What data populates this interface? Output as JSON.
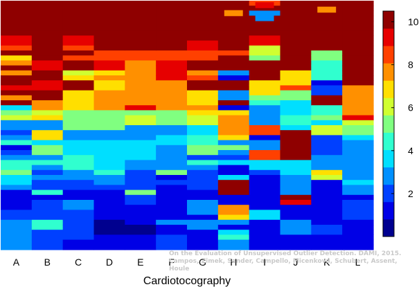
{
  "chart_data": {
    "type": "heatmap",
    "title": "",
    "xlabel": "Cardiotocography",
    "ylabel": "",
    "categories": [
      "A",
      "B",
      "C",
      "D",
      "E",
      "F",
      "G",
      "H",
      "I",
      "J",
      "K",
      "L"
    ],
    "colorbar": {
      "range": [
        0,
        10.5
      ],
      "ticks": [
        "2",
        "4",
        "6",
        "8",
        "10"
      ],
      "colors": [
        "#00008f",
        "#0000e6",
        "#0040ff",
        "#0090ff",
        "#00dfff",
        "#30ffcf",
        "#80ff80",
        "#d0ff30",
        "#ffdf00",
        "#ff9000",
        "#ff4000",
        "#e60000",
        "#8f0000"
      ]
    },
    "rows_top_to_bottom": 50,
    "columns": [
      [
        10.3,
        10.3,
        10.3,
        10.3,
        10.3,
        10.3,
        10.3,
        9.3,
        9.3,
        8.5,
        10.3,
        6.5,
        8.0,
        10.3,
        7.5,
        10.3,
        10.3,
        9.5,
        10.3,
        7.8,
        10.3,
        4.0,
        5.0,
        6.0,
        2.5,
        3.2,
        2.2,
        3.0,
        4.5,
        1.5,
        2.0,
        2.8,
        4.8,
        4.5,
        5.5,
        3.5,
        4.0,
        2.5,
        1.5,
        1.0,
        1.5,
        1.5,
        2.0,
        2.0,
        2.5,
        3.0,
        3.0,
        2.8,
        2.8,
        2.8
      ],
      [
        10.3,
        10.3,
        10.3,
        10.3,
        10.3,
        10.3,
        10.3,
        10.3,
        10.3,
        10.3,
        10.3,
        10.3,
        9.5,
        9.5,
        10.3,
        10.3,
        9.5,
        9.5,
        10.3,
        10.3,
        7.8,
        7.8,
        6.0,
        6.5,
        2.5,
        3.2,
        7.0,
        6.5,
        4.0,
        5.0,
        5.0,
        2.5,
        4.5,
        2.5,
        2.0,
        2.5,
        2.0,
        2.0,
        4.5,
        1.5,
        2.0,
        2.0,
        2.0,
        2.0,
        4.5,
        4.5,
        2.0,
        2.0,
        2.0,
        2.0
      ],
      [
        10.3,
        10.3,
        10.3,
        10.3,
        10.3,
        10.3,
        10.3,
        9.3,
        9.3,
        8.5,
        10.3,
        8.5,
        10.3,
        10.3,
        6.0,
        6.5,
        10.3,
        10.3,
        6.5,
        6.5,
        6.5,
        7.0,
        5.0,
        5.0,
        5.0,
        5.0,
        3.0,
        3.0,
        4.0,
        4.0,
        4.0,
        4.5,
        4.5,
        4.5,
        2.5,
        2.5,
        2.0,
        2.0,
        1.5,
        1.5,
        2.5,
        2.5,
        2.0,
        2.0,
        2.0,
        2.0,
        2.0,
        2.0,
        1.5,
        1.5
      ],
      [
        10.3,
        10.3,
        10.3,
        10.3,
        10.3,
        10.3,
        10.3,
        10.3,
        10.3,
        10.3,
        8.5,
        8.5,
        9.3,
        9.3,
        6.5,
        7.5,
        6.5,
        6.5,
        7.5,
        7.5,
        7.5,
        8.0,
        5.0,
        5.0,
        5.0,
        5.0,
        3.0,
        3.0,
        4.0,
        4.0,
        4.0,
        4.0,
        4.0,
        4.0,
        4.5,
        3.0,
        2.5,
        2.0,
        1.5,
        1.5,
        1.5,
        1.5,
        1.0,
        1.0,
        0.8,
        0.8,
        0.8,
        1.0,
        1.0,
        1.0
      ],
      [
        10.3,
        10.3,
        10.3,
        10.3,
        10.3,
        10.3,
        10.3,
        10.3,
        10.3,
        10.3,
        8.5,
        8.5,
        8.0,
        8.0,
        7.5,
        7.5,
        7.5,
        7.5,
        7.5,
        7.5,
        7.5,
        9.3,
        5.0,
        6.0,
        6.0,
        2.5,
        3.0,
        3.0,
        4.0,
        4.0,
        4.0,
        4.0,
        2.5,
        2.5,
        2.0,
        2.0,
        2.0,
        2.0,
        5.0,
        2.0,
        2.0,
        1.5,
        1.5,
        1.0,
        1.0,
        0.8,
        0.8,
        1.0,
        1.0,
        1.0
      ],
      [
        10.3,
        10.3,
        10.3,
        10.3,
        10.3,
        10.3,
        10.3,
        10.3,
        10.3,
        10.3,
        8.5,
        8.5,
        9.3,
        9.3,
        9.3,
        9.3,
        7.5,
        7.5,
        7.5,
        7.5,
        7.5,
        7.5,
        5.0,
        5.0,
        5.0,
        3.2,
        3.2,
        3.5,
        3.5,
        2.5,
        2.5,
        2.5,
        2.5,
        2.5,
        5.5,
        1.5,
        2.0,
        1.5,
        1.5,
        1.5,
        1.5,
        1.5,
        1.5,
        1.5,
        3.0,
        1.0,
        1.0,
        2.0,
        2.0,
        2.0
      ],
      [
        10.3,
        10.3,
        10.3,
        10.3,
        10.3,
        10.3,
        10.3,
        10.3,
        9.3,
        9.3,
        8.5,
        8.5,
        10.3,
        10.3,
        8.0,
        8.5,
        10.3,
        10.3,
        6.5,
        6.5,
        6.5,
        7.5,
        7.0,
        6.0,
        6.0,
        4.0,
        4.0,
        4.5,
        4.5,
        5.0,
        5.0,
        2.0,
        4.5,
        2.5,
        2.0,
        2.0,
        2.0,
        2.0,
        1.5,
        1.0,
        2.5,
        2.5,
        2.5,
        1.5,
        3.0,
        3.0,
        1.0,
        1.0,
        1.0,
        1.0
      ],
      [
        10.3,
        10.3,
        10.3,
        10.3,
        10.3,
        10.3,
        10.3,
        10.3,
        10.3,
        10.3,
        8.5,
        10.3,
        10.3,
        10.3,
        2.5,
        1.5,
        10.3,
        10.3,
        3.0,
        3.0,
        10.3,
        1.5,
        6.5,
        8.0,
        8.0,
        8.0,
        7.5,
        6.5,
        3.0,
        5.0,
        3.0,
        2.0,
        4.0,
        1.5,
        1.0,
        3.5,
        10.3,
        10.3,
        10.3,
        1.0,
        1.0,
        7.5,
        8.0,
        6.5,
        3.0,
        1.0,
        4.0,
        4.5,
        2.5,
        2.5
      ],
      [
        8.5,
        10.3,
        3.0,
        10.3,
        10.3,
        10.3,
        10.3,
        9.5,
        9.5,
        6.0,
        6.0,
        5.5,
        10.3,
        10.3,
        10.3,
        10.3,
        6.5,
        6.5,
        6.5,
        5.0,
        4.5,
        3.2,
        3.2,
        3.2,
        2.5,
        8.5,
        8.5,
        1.5,
        3.0,
        3.0,
        8.5,
        8.5,
        4.0,
        4.0,
        2.0,
        1.5,
        1.5,
        1.5,
        1.5,
        1.5,
        1.5,
        1.5,
        4.0,
        4.0,
        1.5,
        1.5,
        1.5,
        1.5,
        1.5,
        1.5
      ],
      [
        10.3,
        10.3,
        10.3,
        10.3,
        10.3,
        10.3,
        10.3,
        10.3,
        10.3,
        10.3,
        10.3,
        10.3,
        10.3,
        10.3,
        6.5,
        6.5,
        6.5,
        8.5,
        5.0,
        5.0,
        3.5,
        3.5,
        4.0,
        4.5,
        4.5,
        4.0,
        10.3,
        10.3,
        10.3,
        10.3,
        10.3,
        10.3,
        3.5,
        3.5,
        3.5,
        2.5,
        2.5,
        2.5,
        2.5,
        10.3,
        9.5,
        1.5,
        1.5,
        1.5,
        2.5,
        2.5,
        2.5,
        1.0,
        1.0,
        1.0
      ],
      [
        10.3,
        10.3,
        10.3,
        10.3,
        10.3,
        10.3,
        10.3,
        10.3,
        10.3,
        10.3,
        5.0,
        5.0,
        4.5,
        4.5,
        4.5,
        4.5,
        1.5,
        2.0,
        2.0,
        10.3,
        10.3,
        4.5,
        4.5,
        5.5,
        4.0,
        6.0,
        6.0,
        2.0,
        2.0,
        2.0,
        2.0,
        3.0,
        3.0,
        3.0,
        6.5,
        6.0,
        1.5,
        1.5,
        1.5,
        1.5,
        1.5,
        1.5,
        1.0,
        1.0,
        1.0,
        2.0,
        2.0,
        1.0,
        1.0,
        1.0
      ],
      [
        10.3,
        10.3,
        10.3,
        10.3,
        10.3,
        10.3,
        10.3,
        10.3,
        10.3,
        10.3,
        10.3,
        10.3,
        10.3,
        10.3,
        10.3,
        10.3,
        10.3,
        7.5,
        7.5,
        7.5,
        7.5,
        7.5,
        7.5,
        9.5,
        6.0,
        5.0,
        5.0,
        4.0,
        3.0,
        3.0,
        3.0,
        3.0,
        3.0,
        3.0,
        3.0,
        3.0,
        4.0,
        3.0,
        3.0,
        1.5,
        2.0,
        2.0,
        2.0,
        2.0,
        1.0,
        1.0,
        1.0,
        1.0,
        1.0,
        1.0
      ]
    ],
    "annotations": [
      {
        "column": 8,
        "row": 0.3,
        "value": 9.3
      },
      {
        "column": 7,
        "row": 1.9,
        "value": 7.5
      },
      {
        "column": 8,
        "row": 2.9,
        "value": 2.5
      },
      {
        "column": 10,
        "row": 1.2,
        "value": 7.5
      }
    ]
  },
  "watermark": {
    "line1": "On the Evaluation of Unsupervised Outlier Detection. DAMI, 2015.",
    "line2": "Campos, Zimek, Sander, Campello, Micenková, Schubert, Assent, Houle"
  }
}
